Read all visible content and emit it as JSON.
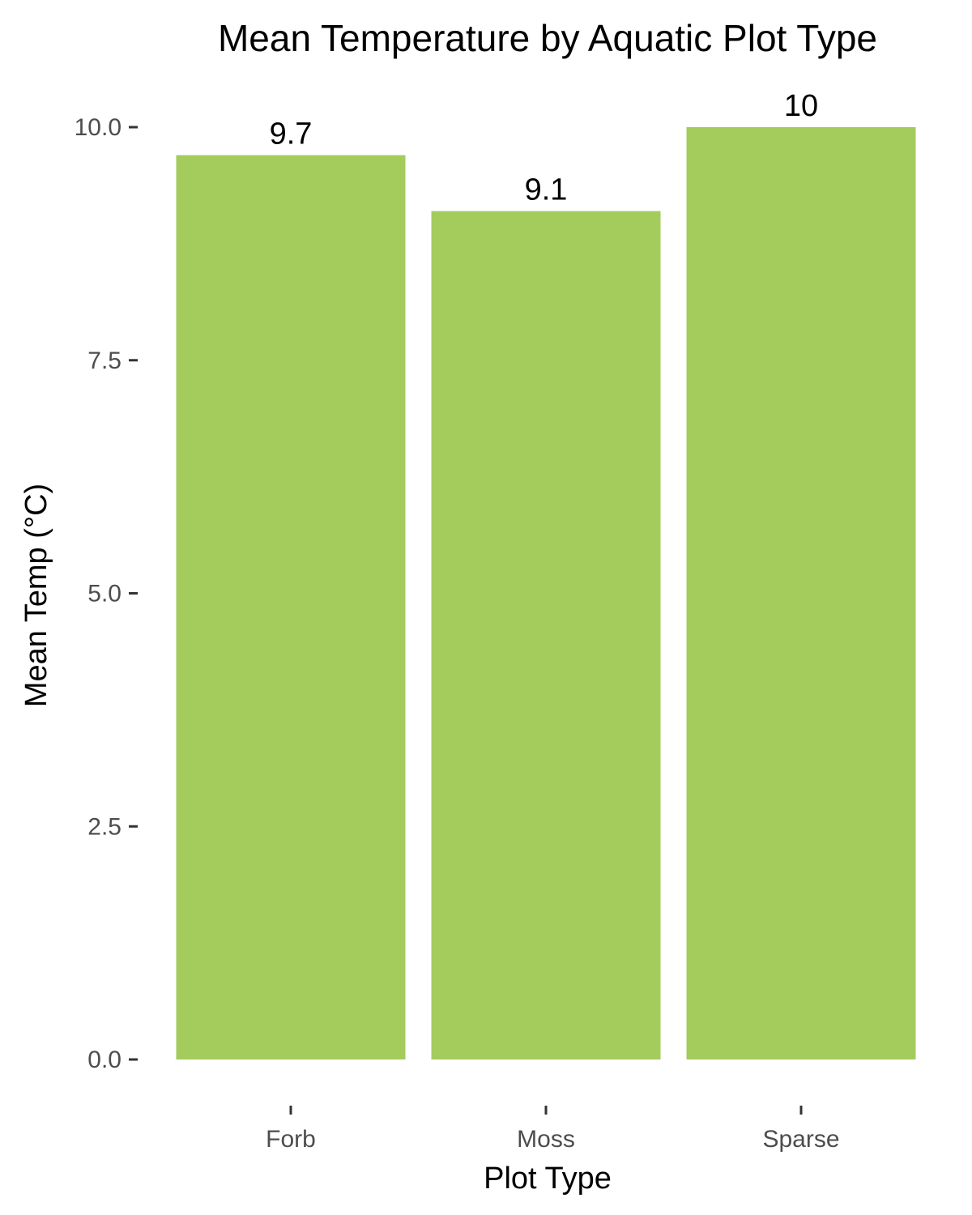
{
  "chart_data": {
    "type": "bar",
    "title": "Mean Temperature by Aquatic Plot Type",
    "xlabel": "Plot Type",
    "ylabel": "Mean Temp (°C)",
    "categories": [
      "Forb",
      "Moss",
      "Sparse"
    ],
    "values": [
      9.7,
      9.1,
      10
    ],
    "data_labels": [
      "9.7",
      "9.1",
      "10"
    ],
    "ylim": [
      0,
      10
    ],
    "yticks": [
      0,
      2.5,
      5,
      7.5,
      10
    ],
    "ytick_labels": [
      "0.0",
      "2.5",
      "5.0",
      "7.5",
      "10.0"
    ],
    "grid": false,
    "bar_color": "#a3cc5c"
  }
}
